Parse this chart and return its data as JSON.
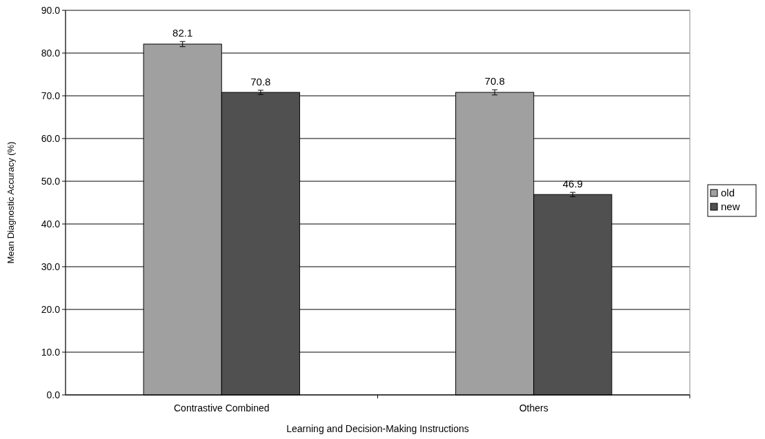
{
  "chart_data": {
    "type": "bar",
    "xlabel": "Learning and Decision-Making Instructions",
    "ylabel": "Mean Diagnostic Accuracy (%)",
    "categories": [
      "Contrastive Combined",
      "Others"
    ],
    "series": [
      {
        "name": "old",
        "color": "#a0a0a0",
        "values": [
          82.1,
          70.8
        ],
        "errors": [
          0.6,
          0.6
        ]
      },
      {
        "name": "new",
        "color": "#505050",
        "values": [
          70.8,
          46.9
        ],
        "errors": [
          0.5,
          0.5
        ]
      }
    ],
    "ylim": [
      0,
      90
    ],
    "yticks": [
      {
        "value": 0,
        "label": "0.0"
      },
      {
        "value": 10,
        "label": "10.0"
      },
      {
        "value": 20,
        "label": "20.0"
      },
      {
        "value": 30,
        "label": "30.0"
      },
      {
        "value": 40,
        "label": "40.0"
      },
      {
        "value": 50,
        "label": "50.0"
      },
      {
        "value": 60,
        "label": "60.0"
      },
      {
        "value": 70,
        "label": "70.0"
      },
      {
        "value": 80,
        "label": "80.0"
      },
      {
        "value": 90,
        "label": "90.0"
      }
    ],
    "grid": "y",
    "legend": "right",
    "data_labels": true
  }
}
